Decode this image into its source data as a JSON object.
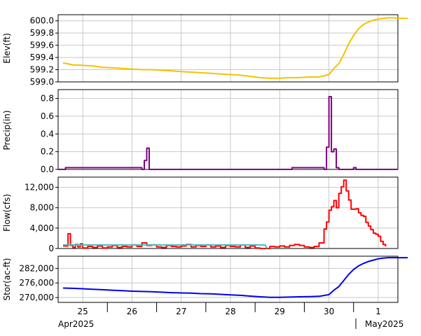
{
  "chart_data": [
    {
      "type": "line",
      "ylabel": "Elev(ft)",
      "yticks": [
        "599.0",
        "599.2",
        "599.4",
        "599.6",
        "599.8",
        "600.0"
      ],
      "ylim": [
        599.0,
        600.1
      ],
      "grid": true,
      "series": [
        {
          "color": "#f5c200",
          "x": [
            24.6,
            24.8,
            25.0,
            25.2,
            25.4,
            25.6,
            25.8,
            26.0,
            26.2,
            26.4,
            26.6,
            26.8,
            27.0,
            27.2,
            27.4,
            27.6,
            27.8,
            28.0,
            28.2,
            28.4,
            28.6,
            28.8,
            29.0,
            29.2,
            29.4,
            29.6,
            29.8,
            30.0,
            30.1,
            30.2,
            30.3,
            30.4,
            30.5,
            30.6,
            30.7,
            30.8,
            30.9,
            31.0,
            31.1,
            31.2,
            31.3,
            31.4,
            31.6
          ],
          "values": [
            599.31,
            599.28,
            599.27,
            599.26,
            599.24,
            599.23,
            599.22,
            599.21,
            599.2,
            599.2,
            599.19,
            599.18,
            599.17,
            599.16,
            599.15,
            599.14,
            599.13,
            599.12,
            599.11,
            599.09,
            599.07,
            599.06,
            599.06,
            599.07,
            599.07,
            599.08,
            599.08,
            599.12,
            599.22,
            599.3,
            599.45,
            599.62,
            599.76,
            599.87,
            599.94,
            599.98,
            600.01,
            600.03,
            600.04,
            600.05,
            600.05,
            600.04,
            600.04
          ]
        }
      ]
    },
    {
      "type": "bar",
      "ylabel": "Precip(in)",
      "yticks": [
        "0.0",
        "0.2",
        "0.4",
        "0.6",
        "0.8"
      ],
      "ylim": [
        0,
        0.9
      ],
      "grid": true,
      "series": [
        {
          "color": "#800080",
          "x": [
            24.6,
            24.65,
            26.2,
            26.25,
            26.3,
            26.35,
            29.2,
            29.25,
            29.9,
            29.95,
            30.0,
            30.05,
            30.1,
            30.15,
            30.2,
            30.25,
            30.5,
            30.55
          ],
          "values": [
            0.0,
            0.02,
            0.0,
            0.1,
            0.24,
            0.0,
            0.0,
            0.02,
            0.0,
            0.25,
            0.82,
            0.2,
            0.23,
            0.02,
            0.0,
            0.0,
            0.02,
            0.0
          ]
        }
      ]
    },
    {
      "type": "line",
      "ylabel": "Flow(cfs)",
      "yticks": [
        "0",
        "4,000",
        "8,000",
        "12,000"
      ],
      "ylim": [
        0,
        14000
      ],
      "grid": true,
      "series": [
        {
          "color": "#ff0000",
          "x": [
            24.6,
            24.7,
            24.75,
            24.8,
            24.85,
            24.9,
            24.95,
            25.0,
            25.1,
            25.2,
            25.3,
            25.4,
            25.5,
            25.6,
            25.7,
            25.8,
            25.9,
            26.0,
            26.1,
            26.2,
            26.3,
            26.4,
            26.5,
            26.6,
            26.7,
            26.8,
            26.9,
            27.0,
            27.1,
            27.2,
            27.3,
            27.4,
            27.5,
            27.6,
            27.7,
            27.8,
            27.9,
            28.0,
            28.1,
            28.2,
            28.3,
            28.4,
            28.5,
            28.6,
            28.7,
            28.8,
            28.9,
            29.0,
            29.1,
            29.2,
            29.3,
            29.4,
            29.5,
            29.6,
            29.7,
            29.8,
            29.9,
            29.95,
            30.0,
            30.05,
            30.1,
            30.15,
            30.2,
            30.25,
            30.3,
            30.35,
            30.4,
            30.45,
            30.5,
            30.55,
            30.6,
            30.65,
            30.7,
            30.75,
            30.8,
            30.85,
            30.9,
            30.95,
            31.0,
            31.05,
            31.1,
            31.15
          ],
          "values": [
            500,
            2900,
            600,
            200,
            800,
            300,
            900,
            100,
            400,
            200,
            500,
            100,
            300,
            600,
            200,
            400,
            300,
            700,
            400,
            1100,
            600,
            700,
            300,
            200,
            600,
            400,
            300,
            500,
            800,
            300,
            600,
            400,
            700,
            300,
            500,
            200,
            600,
            400,
            300,
            700,
            200,
            500,
            100,
            0,
            0,
            400,
            300,
            500,
            300,
            600,
            800,
            600,
            300,
            200,
            400,
            1100,
            3800,
            5200,
            7500,
            8200,
            9400,
            8000,
            10800,
            12100,
            13400,
            11300,
            9500,
            7700,
            7700,
            7800,
            7000,
            6500,
            6300,
            5100,
            4400,
            3700,
            3000,
            2800,
            2400,
            1400,
            800,
            400
          ]
        },
        {
          "color": "#40c0c0",
          "x": [
            24.6,
            25.5,
            26.5,
            27.5,
            28.3,
            28.7,
            28.75
          ],
          "values": [
            700,
            700,
            700,
            700,
            700,
            700,
            0
          ]
        }
      ]
    },
    {
      "type": "line",
      "ylabel": "Stor(ac-ft)",
      "yticks": [
        "270,000",
        "276,000",
        "282,000"
      ],
      "ylim": [
        268000,
        287000
      ],
      "grid": true,
      "series": [
        {
          "color": "#0000ee",
          "x": [
            24.6,
            24.8,
            25.0,
            25.2,
            25.4,
            25.6,
            25.8,
            26.0,
            26.2,
            26.4,
            26.6,
            26.8,
            27.0,
            27.2,
            27.4,
            27.6,
            27.8,
            28.0,
            28.2,
            28.4,
            28.6,
            28.8,
            29.0,
            29.2,
            29.4,
            29.6,
            29.8,
            30.0,
            30.1,
            30.2,
            30.3,
            30.4,
            30.5,
            30.6,
            30.7,
            30.8,
            30.9,
            31.0,
            31.1,
            31.2,
            31.3,
            31.4,
            31.6
          ],
          "values": [
            273900,
            273800,
            273600,
            273400,
            273200,
            273000,
            272800,
            272600,
            272500,
            272400,
            272200,
            272000,
            271900,
            271800,
            271600,
            271500,
            271300,
            271100,
            270900,
            270600,
            270300,
            270100,
            270100,
            270200,
            270300,
            270400,
            270500,
            271200,
            273000,
            274500,
            277000,
            279500,
            281500,
            283000,
            284000,
            284800,
            285400,
            285900,
            286200,
            286400,
            286400,
            286400,
            286400
          ]
        }
      ],
      "xticks": [
        "25",
        "26",
        "27",
        "28",
        "29",
        "30",
        "1"
      ],
      "xticks_x": [
        25,
        26,
        27,
        28,
        29,
        30,
        31
      ],
      "xlim": [
        24.5,
        31.4
      ],
      "x_secondary_labels": [
        "Apr2025",
        "May2025"
      ]
    }
  ]
}
